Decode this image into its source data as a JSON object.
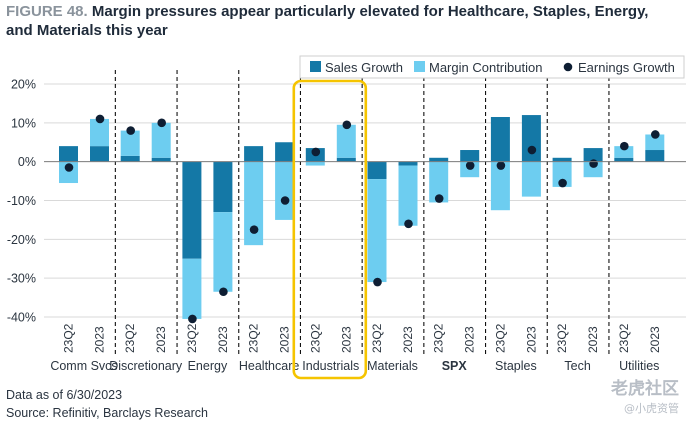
{
  "header": {
    "figure_label": "FIGURE 48.",
    "title": "Margin pressures appear particularly elevated for Healthcare, Staples, Energy, and Materials this year"
  },
  "footer": {
    "note": "Data as of 6/30/2023",
    "source": "Source: Refinitiv, Barclays Research"
  },
  "watermark": {
    "text1": "老虎社区",
    "text2": "@小虎资管"
  },
  "colors": {
    "sales": "#1478a6",
    "margin": "#6dcdf0",
    "earnings": "#0e1e33",
    "highlight": "#f5c400",
    "grid": "#d9d9d9",
    "axis_text": "#2b3540"
  },
  "chart_data": {
    "type": "bar",
    "title": "Margin pressures appear particularly elevated for Healthcare, Staples, Energy, and Materials this year",
    "ylim": [
      -40,
      20
    ],
    "yticks": [
      20,
      10,
      0,
      -10,
      -20,
      -30,
      -40
    ],
    "ytick_labels": [
      "20%",
      "10%",
      "0%",
      "-10%",
      "-20%",
      "-30%",
      "-40%"
    ],
    "grid": true,
    "legend_position": "top-right",
    "legend": [
      "Sales Growth",
      "Margin Contribution",
      "Earnings Growth"
    ],
    "highlighted_group": "Industrials",
    "groups": [
      {
        "name": "Comm Svcs",
        "bold": false,
        "bars": [
          {
            "period": "23Q2",
            "sales": 4.0,
            "margin": -5.5,
            "earnings": -1.5
          },
          {
            "period": "2023",
            "sales": 4.0,
            "margin": 7.0,
            "earnings": 11.0
          }
        ]
      },
      {
        "name": "Discretionary",
        "bold": false,
        "bars": [
          {
            "period": "23Q2",
            "sales": 1.5,
            "margin": 6.5,
            "earnings": 8.0
          },
          {
            "period": "2023",
            "sales": 1.0,
            "margin": 9.0,
            "earnings": 10.0
          }
        ]
      },
      {
        "name": "Energy",
        "bold": false,
        "bars": [
          {
            "period": "23Q2",
            "sales": -25.0,
            "margin": -15.5,
            "earnings": -40.5
          },
          {
            "period": "2023",
            "sales": -13.0,
            "margin": -20.5,
            "earnings": -33.5
          }
        ]
      },
      {
        "name": "Healthcare",
        "bold": false,
        "bars": [
          {
            "period": "23Q2",
            "sales": 4.0,
            "margin": -21.5,
            "earnings": -17.5
          },
          {
            "period": "2023",
            "sales": 5.0,
            "margin": -15.0,
            "earnings": -10.0
          }
        ]
      },
      {
        "name": "Industrials",
        "bold": false,
        "bars": [
          {
            "period": "23Q2",
            "sales": 3.5,
            "margin": -1.0,
            "earnings": 2.5
          },
          {
            "period": "2023",
            "sales": 1.0,
            "margin": 8.5,
            "earnings": 9.5
          }
        ]
      },
      {
        "name": "Materials",
        "bold": false,
        "bars": [
          {
            "period": "23Q2",
            "sales": -4.5,
            "margin": -26.5,
            "earnings": -31.0
          },
          {
            "period": "2023",
            "sales": -1.0,
            "margin": -15.5,
            "earnings": -16.0
          }
        ]
      },
      {
        "name": "SPX",
        "bold": true,
        "bars": [
          {
            "period": "23Q2",
            "sales": 1.0,
            "margin": -10.5,
            "earnings": -9.5
          },
          {
            "period": "2023",
            "sales": 3.0,
            "margin": -4.0,
            "earnings": -1.0
          }
        ]
      },
      {
        "name": "Staples",
        "bold": false,
        "bars": [
          {
            "period": "23Q2",
            "sales": 11.5,
            "margin": -12.5,
            "earnings": -1.0
          },
          {
            "period": "2023",
            "sales": 12.0,
            "margin": -9.0,
            "earnings": 3.0
          }
        ]
      },
      {
        "name": "Tech",
        "bold": false,
        "bars": [
          {
            "period": "23Q2",
            "sales": 1.0,
            "margin": -6.5,
            "earnings": -5.5
          },
          {
            "period": "2023",
            "sales": 3.5,
            "margin": -4.0,
            "earnings": -0.5
          }
        ]
      },
      {
        "name": "Utilities",
        "bold": false,
        "bars": [
          {
            "period": "23Q2",
            "sales": 1.0,
            "margin": 3.0,
            "earnings": 4.0
          },
          {
            "period": "2023",
            "sales": 3.0,
            "margin": 4.0,
            "earnings": 7.0
          }
        ]
      }
    ]
  }
}
